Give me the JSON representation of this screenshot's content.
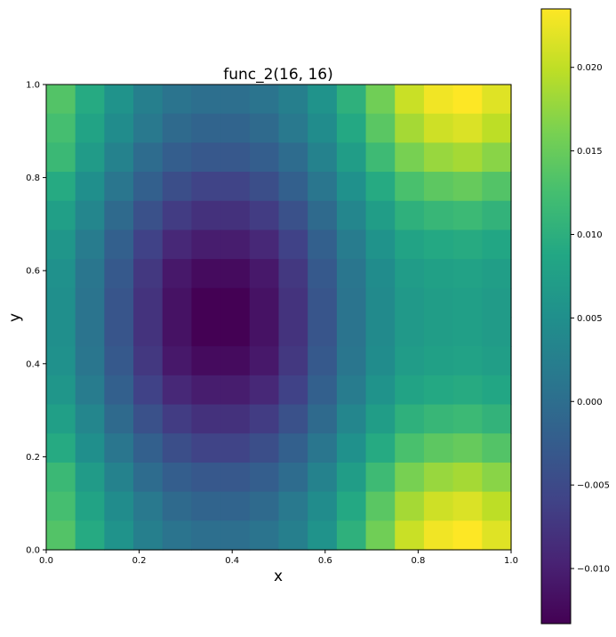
{
  "chart_data": {
    "type": "heatmap",
    "title": "func_2(16, 16)",
    "xlabel": "x",
    "ylabel": "y",
    "xlim": [
      0,
      1
    ],
    "ylim": [
      0,
      1
    ],
    "x_ticks": [
      "0.0",
      "0.2",
      "0.4",
      "0.6",
      "0.8",
      "1.0"
    ],
    "y_ticks": [
      "0.0",
      "0.2",
      "0.4",
      "0.6",
      "0.8",
      "1.0"
    ],
    "colormap": "viridis",
    "color_range": [
      -0.0133,
      0.0235
    ],
    "colorbar_ticks": [
      -0.01,
      -0.005,
      0.0,
      0.005,
      0.01,
      0.015,
      0.02
    ],
    "colorbar_tick_labels": [
      "−0.010",
      "−0.005",
      "0.000",
      "0.005",
      "0.010",
      "0.015",
      "0.020"
    ],
    "grid": false,
    "legend": "none",
    "rows_order": "top-to-bottom (y from 1.0 down to 0.0)",
    "values": [
      [
        0.0135,
        0.0092,
        0.0055,
        0.0025,
        0.0009,
        0.0002,
        0.0002,
        0.0009,
        0.0025,
        0.0055,
        0.0102,
        0.0155,
        0.0205,
        0.0228,
        0.0235,
        0.0218
      ],
      [
        0.0125,
        0.0082,
        0.0045,
        0.0015,
        -0.0005,
        -0.0014,
        -0.0014,
        -0.0005,
        0.0015,
        0.0045,
        0.009,
        0.014,
        0.0185,
        0.0208,
        0.0215,
        0.0198
      ],
      [
        0.0115,
        0.0068,
        0.003,
        -0.0003,
        -0.0022,
        -0.0031,
        -0.0031,
        -0.0022,
        -0.0003,
        0.003,
        0.0072,
        0.0118,
        0.016,
        0.0178,
        0.0185,
        0.017
      ],
      [
        0.0092,
        0.005,
        0.0012,
        -0.002,
        -0.0045,
        -0.0058,
        -0.0058,
        -0.0045,
        -0.002,
        0.0012,
        0.0052,
        0.0092,
        0.0128,
        0.0142,
        0.0148,
        0.0135
      ],
      [
        0.0075,
        0.0035,
        -0.0005,
        -0.004,
        -0.0068,
        -0.008,
        -0.008,
        -0.0068,
        -0.004,
        -0.0005,
        0.0035,
        0.0072,
        0.0102,
        0.0112,
        0.0116,
        0.0106
      ],
      [
        0.006,
        0.002,
        -0.002,
        -0.006,
        -0.009,
        -0.0103,
        -0.0103,
        -0.009,
        -0.006,
        -0.002,
        0.002,
        0.0055,
        0.0082,
        0.009,
        0.0093,
        0.0086
      ],
      [
        0.0052,
        0.0012,
        -0.003,
        -0.0072,
        -0.0108,
        -0.0122,
        -0.0122,
        -0.0108,
        -0.0072,
        -0.003,
        0.0012,
        0.0045,
        0.007,
        0.0077,
        0.008,
        0.0073
      ],
      [
        0.005,
        0.0008,
        -0.0035,
        -0.0078,
        -0.0115,
        -0.0133,
        -0.0133,
        -0.0115,
        -0.0078,
        -0.0035,
        0.0008,
        0.0042,
        0.0066,
        0.0072,
        0.0075,
        0.0068
      ],
      [
        0.005,
        0.0008,
        -0.0035,
        -0.0078,
        -0.0115,
        -0.0133,
        -0.0133,
        -0.0115,
        -0.0078,
        -0.0035,
        0.0008,
        0.0042,
        0.0066,
        0.0072,
        0.0075,
        0.0068
      ],
      [
        0.0052,
        0.0012,
        -0.003,
        -0.0072,
        -0.0108,
        -0.0122,
        -0.0122,
        -0.0108,
        -0.0072,
        -0.003,
        0.0012,
        0.0045,
        0.007,
        0.0077,
        0.008,
        0.0073
      ],
      [
        0.006,
        0.002,
        -0.002,
        -0.006,
        -0.009,
        -0.0103,
        -0.0103,
        -0.009,
        -0.006,
        -0.002,
        0.002,
        0.0055,
        0.0082,
        0.009,
        0.0093,
        0.0086
      ],
      [
        0.0075,
        0.0035,
        -0.0005,
        -0.004,
        -0.0068,
        -0.008,
        -0.008,
        -0.0068,
        -0.004,
        -0.0005,
        0.0035,
        0.0072,
        0.0102,
        0.0112,
        0.0116,
        0.0106
      ],
      [
        0.0092,
        0.005,
        0.0012,
        -0.002,
        -0.0045,
        -0.0058,
        -0.0058,
        -0.0045,
        -0.002,
        0.0012,
        0.0052,
        0.0092,
        0.0128,
        0.0142,
        0.0148,
        0.0135
      ],
      [
        0.0115,
        0.0068,
        0.003,
        -0.0003,
        -0.0022,
        -0.0031,
        -0.0031,
        -0.0022,
        -0.0003,
        0.003,
        0.0072,
        0.0118,
        0.016,
        0.0178,
        0.0185,
        0.017
      ],
      [
        0.0125,
        0.0082,
        0.0045,
        0.0015,
        -0.0005,
        -0.0014,
        -0.0014,
        -0.0005,
        0.0015,
        0.0045,
        0.009,
        0.014,
        0.0185,
        0.0208,
        0.0215,
        0.0198
      ],
      [
        0.0135,
        0.0092,
        0.0055,
        0.0025,
        0.0009,
        0.0002,
        0.0002,
        0.0009,
        0.0025,
        0.0055,
        0.0102,
        0.0155,
        0.0205,
        0.0228,
        0.0235,
        0.0218
      ]
    ]
  }
}
